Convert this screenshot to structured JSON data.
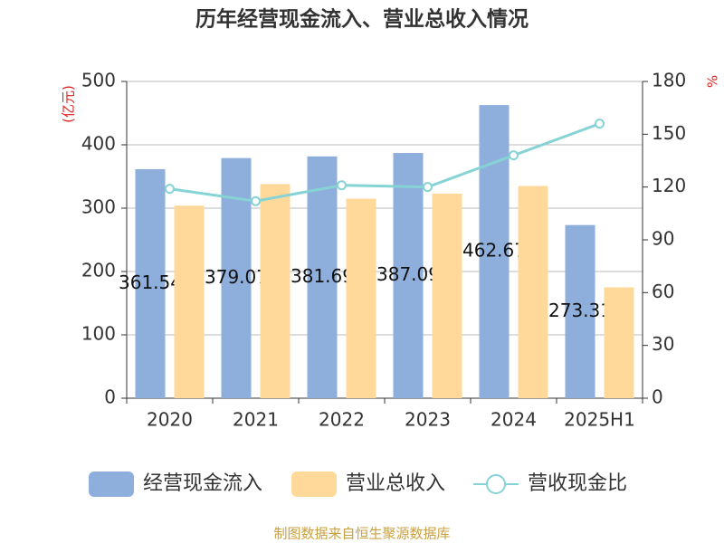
{
  "chart_data": {
    "type": "bar",
    "title": "历年经营现金流入、营业总收入情况",
    "y_label": "(亿元)",
    "y2_label": "%",
    "categories": [
      "2020",
      "2021",
      "2022",
      "2023",
      "2024",
      "2025H1"
    ],
    "series": [
      {
        "name": "经营现金流入",
        "type": "bar",
        "color": "#8eaedb",
        "values": [
          361.54,
          379.07,
          381.69,
          387.09,
          462.67,
          273.31
        ],
        "show_labels": true
      },
      {
        "name": "营业总收入",
        "type": "bar",
        "color": "#ffd99a",
        "values": [
          304,
          338,
          315,
          323,
          335,
          175
        ]
      },
      {
        "name": "营收现金比",
        "type": "line",
        "axis": "y2",
        "color": "#86d3d6",
        "values": [
          119,
          112,
          121,
          120,
          138,
          156
        ]
      }
    ],
    "ylim": [
      0,
      500
    ],
    "yticks": [
      0,
      100,
      200,
      300,
      400,
      500
    ],
    "y2lim": [
      0,
      180
    ],
    "y2ticks": [
      0,
      30,
      60,
      90,
      120,
      150,
      180
    ],
    "grid": true,
    "legend": "bottom",
    "source": "制图数据来自恒生聚源数据库"
  }
}
